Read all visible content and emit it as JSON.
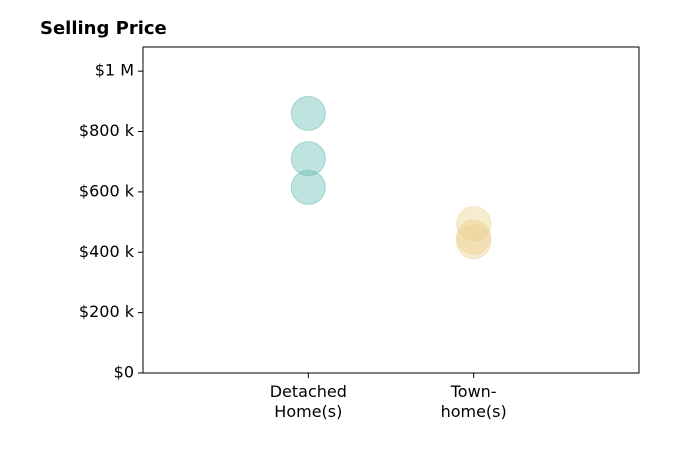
{
  "chart_data": {
    "type": "strip",
    "title": "Selling Price",
    "categories": [
      "Detached\nHome(s)",
      "Town-\nhome(s)"
    ],
    "values": [
      [
        860000,
        710000,
        615000
      ],
      [
        495000,
        450000,
        435000
      ]
    ],
    "colors": [
      "#5fb8b0",
      "#ecd08a"
    ],
    "ylim": [
      0,
      1080000
    ],
    "yticks": [
      {
        "value": 0,
        "label": "$0"
      },
      {
        "value": 200000,
        "label": "$200 k"
      },
      {
        "value": 400000,
        "label": "$400 k"
      },
      {
        "value": 600000,
        "label": "$600 k"
      },
      {
        "value": 800000,
        "label": "$800 k"
      },
      {
        "value": 1000000,
        "label": "$1 M"
      }
    ]
  }
}
